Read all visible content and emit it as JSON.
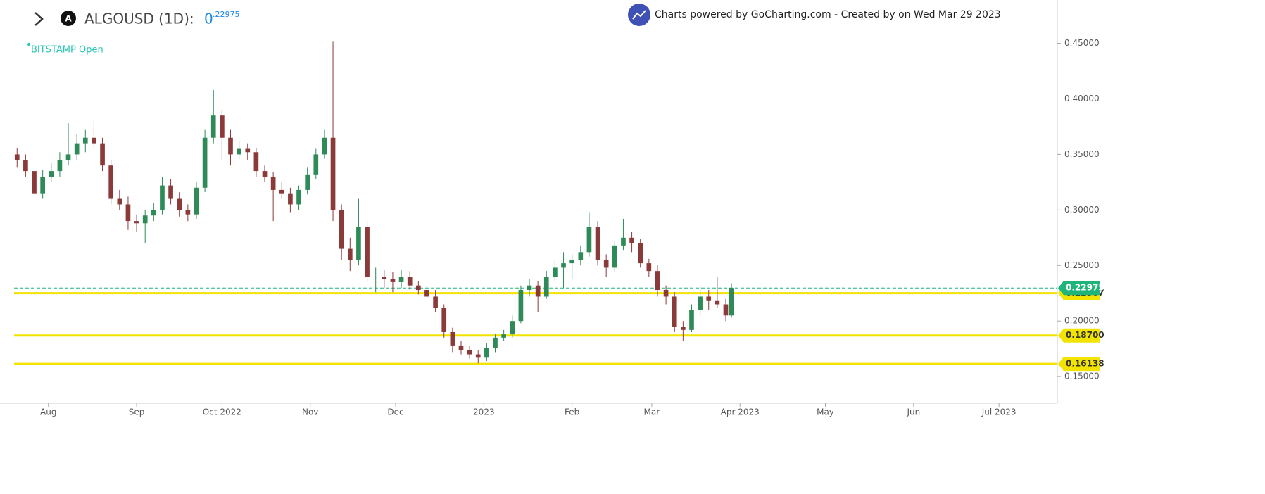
{
  "chart_data": {
    "type": "candlestick",
    "title": "ALGOUSD (1D):",
    "last_price_int": "0",
    "last_price_frac": ".22975",
    "exchange_label": "BITSTAMP Open",
    "credit": "Charts powered by GoCharting.com - Created by  on Wed Mar 29 2023",
    "up_color": "#2e8b57",
    "down_color": "#8b3a3a",
    "xlim": [
      -6,
      365
    ],
    "xticks": [
      {
        "value": 11,
        "label": "Aug"
      },
      {
        "value": 42,
        "label": "Sep"
      },
      {
        "value": 72,
        "label": "Oct 2022"
      },
      {
        "value": 103,
        "label": "Nov"
      },
      {
        "value": 133,
        "label": "Dec"
      },
      {
        "value": 164,
        "label": "2023"
      },
      {
        "value": 195,
        "label": "Feb"
      },
      {
        "value": 223,
        "label": "Mar"
      },
      {
        "value": 254,
        "label": "Apr 2023"
      },
      {
        "value": 284,
        "label": "May"
      },
      {
        "value": 315,
        "label": "Jun"
      },
      {
        "value": 345,
        "label": "Jul 2023"
      }
    ],
    "ylim": [
      0.126,
      0.489
    ],
    "yticks": [
      {
        "value": 0.15,
        "label": "0.15000"
      },
      {
        "value": 0.2,
        "label": "0.20000"
      },
      {
        "value": 0.25,
        "label": "0.25000"
      },
      {
        "value": 0.3,
        "label": "0.30000"
      },
      {
        "value": 0.35,
        "label": "0.35000"
      },
      {
        "value": 0.4,
        "label": "0.40000"
      },
      {
        "value": 0.45,
        "label": "0.45000"
      }
    ],
    "last_price": 0.22975,
    "last_price_color": "#1fb57a",
    "level_color": "#f2e300",
    "levels": [
      0.22507,
      {
        "value": 0.187,
        "label": "0.18700"
      },
      0.16138
    ],
    "x": [
      0,
      3,
      6,
      9,
      12,
      15,
      18,
      21,
      24,
      27,
      30,
      33,
      36,
      39,
      42,
      45,
      48,
      51,
      54,
      57,
      60,
      63,
      66,
      69,
      72,
      75,
      78,
      81,
      84,
      87,
      90,
      93,
      96,
      99,
      102,
      105,
      108,
      111,
      114,
      117,
      120,
      123,
      126,
      129,
      132,
      135,
      138,
      141,
      144,
      147,
      150,
      153,
      156,
      159,
      162,
      165,
      168,
      171,
      174,
      177,
      180,
      183,
      186,
      189,
      192,
      195,
      198,
      201,
      204,
      207,
      210,
      213,
      216,
      219,
      222,
      225,
      228,
      231,
      234,
      237,
      240,
      243,
      246,
      249,
      251
    ],
    "ohlc": [
      [
        0.35,
        0.356,
        0.338,
        0.345
      ],
      [
        0.345,
        0.35,
        0.33,
        0.335
      ],
      [
        0.335,
        0.34,
        0.303,
        0.315
      ],
      [
        0.315,
        0.336,
        0.31,
        0.33
      ],
      [
        0.33,
        0.342,
        0.325,
        0.335
      ],
      [
        0.335,
        0.352,
        0.33,
        0.345
      ],
      [
        0.345,
        0.378,
        0.34,
        0.35
      ],
      [
        0.35,
        0.368,
        0.345,
        0.36
      ],
      [
        0.36,
        0.372,
        0.352,
        0.365
      ],
      [
        0.365,
        0.38,
        0.355,
        0.36
      ],
      [
        0.36,
        0.365,
        0.335,
        0.34
      ],
      [
        0.34,
        0.345,
        0.305,
        0.31
      ],
      [
        0.31,
        0.318,
        0.3,
        0.305
      ],
      [
        0.305,
        0.312,
        0.282,
        0.29
      ],
      [
        0.29,
        0.296,
        0.28,
        0.288
      ],
      [
        0.288,
        0.3,
        0.27,
        0.295
      ],
      [
        0.295,
        0.306,
        0.29,
        0.3
      ],
      [
        0.3,
        0.33,
        0.296,
        0.322
      ],
      [
        0.322,
        0.328,
        0.305,
        0.31
      ],
      [
        0.31,
        0.316,
        0.294,
        0.3
      ],
      [
        0.3,
        0.305,
        0.29,
        0.296
      ],
      [
        0.296,
        0.325,
        0.292,
        0.32
      ],
      [
        0.32,
        0.372,
        0.316,
        0.365
      ],
      [
        0.365,
        0.408,
        0.36,
        0.385
      ],
      [
        0.385,
        0.39,
        0.345,
        0.365
      ],
      [
        0.365,
        0.372,
        0.34,
        0.35
      ],
      [
        0.35,
        0.362,
        0.346,
        0.355
      ],
      [
        0.355,
        0.36,
        0.345,
        0.352
      ],
      [
        0.352,
        0.356,
        0.33,
        0.335
      ],
      [
        0.335,
        0.34,
        0.325,
        0.33
      ],
      [
        0.33,
        0.334,
        0.29,
        0.318
      ],
      [
        0.318,
        0.325,
        0.31,
        0.315
      ],
      [
        0.315,
        0.32,
        0.298,
        0.305
      ],
      [
        0.305,
        0.322,
        0.3,
        0.318
      ],
      [
        0.318,
        0.338,
        0.314,
        0.332
      ],
      [
        0.332,
        0.355,
        0.328,
        0.35
      ],
      [
        0.35,
        0.372,
        0.346,
        0.365
      ],
      [
        0.365,
        0.452,
        0.29,
        0.3
      ],
      [
        0.3,
        0.305,
        0.255,
        0.265
      ],
      [
        0.265,
        0.275,
        0.245,
        0.255
      ],
      [
        0.255,
        0.31,
        0.25,
        0.285
      ],
      [
        0.285,
        0.29,
        0.235,
        0.24
      ],
      [
        0.24,
        0.248,
        0.226,
        0.24
      ],
      [
        0.24,
        0.246,
        0.23,
        0.238
      ],
      [
        0.238,
        0.244,
        0.226,
        0.235
      ],
      [
        0.235,
        0.246,
        0.23,
        0.24
      ],
      [
        0.24,
        0.245,
        0.228,
        0.232
      ],
      [
        0.232,
        0.236,
        0.224,
        0.228
      ],
      [
        0.228,
        0.232,
        0.218,
        0.222
      ],
      [
        0.222,
        0.228,
        0.208,
        0.212
      ],
      [
        0.212,
        0.215,
        0.185,
        0.19
      ],
      [
        0.19,
        0.194,
        0.172,
        0.178
      ],
      [
        0.178,
        0.182,
        0.17,
        0.174
      ],
      [
        0.174,
        0.178,
        0.166,
        0.17
      ],
      [
        0.17,
        0.174,
        0.162,
        0.167
      ],
      [
        0.167,
        0.18,
        0.164,
        0.176
      ],
      [
        0.176,
        0.188,
        0.172,
        0.185
      ],
      [
        0.185,
        0.192,
        0.182,
        0.188
      ],
      [
        0.188,
        0.205,
        0.185,
        0.2
      ],
      [
        0.2,
        0.232,
        0.198,
        0.228
      ],
      [
        0.228,
        0.238,
        0.222,
        0.232
      ],
      [
        0.232,
        0.236,
        0.208,
        0.222
      ],
      [
        0.222,
        0.245,
        0.22,
        0.24
      ],
      [
        0.24,
        0.255,
        0.236,
        0.248
      ],
      [
        0.248,
        0.262,
        0.23,
        0.252
      ],
      [
        0.252,
        0.26,
        0.238,
        0.255
      ],
      [
        0.255,
        0.268,
        0.25,
        0.262
      ],
      [
        0.262,
        0.298,
        0.258,
        0.285
      ],
      [
        0.285,
        0.29,
        0.25,
        0.255
      ],
      [
        0.255,
        0.26,
        0.24,
        0.248
      ],
      [
        0.248,
        0.272,
        0.244,
        0.268
      ],
      [
        0.268,
        0.292,
        0.264,
        0.275
      ],
      [
        0.275,
        0.28,
        0.262,
        0.27
      ],
      [
        0.27,
        0.274,
        0.248,
        0.252
      ],
      [
        0.252,
        0.256,
        0.24,
        0.245
      ],
      [
        0.245,
        0.25,
        0.222,
        0.228
      ],
      [
        0.228,
        0.232,
        0.215,
        0.222
      ],
      [
        0.222,
        0.226,
        0.19,
        0.195
      ],
      [
        0.195,
        0.2,
        0.182,
        0.192
      ],
      [
        0.192,
        0.215,
        0.19,
        0.21
      ],
      [
        0.21,
        0.232,
        0.205,
        0.222
      ],
      [
        0.222,
        0.228,
        0.21,
        0.218
      ],
      [
        0.218,
        0.24,
        0.212,
        0.215
      ],
      [
        0.215,
        0.22,
        0.2,
        0.205
      ],
      [
        0.205,
        0.234,
        0.203,
        0.22975
      ]
    ]
  }
}
